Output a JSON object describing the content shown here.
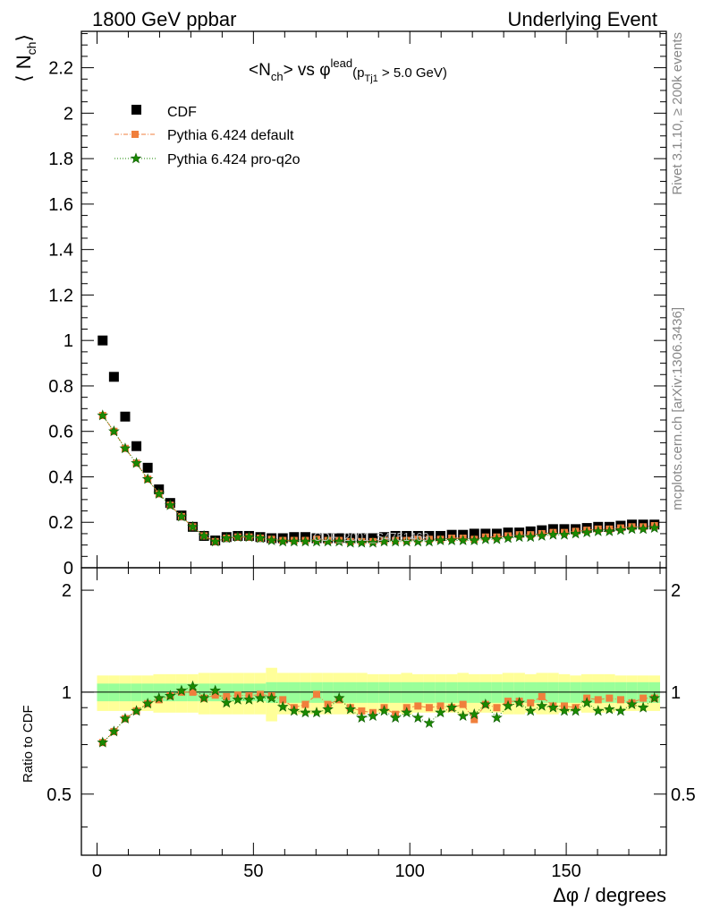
{
  "header": {
    "left": "1800 GeV ppbar",
    "right": "Underlying Event"
  },
  "title": {
    "main_prefix": "<N",
    "main_sub": "ch",
    "main_mid": "> vs φ",
    "main_sup": "lead",
    "cut_open": "(p",
    "cut_sub": "Tj1",
    "cut_rest": " > 5.0 GeV)"
  },
  "side_labels": {
    "rivet": "Rivet 3.1.10, ≥ 200k events",
    "mcplots": "mcplots.cern.ch [arXiv:1306.3436]"
  },
  "watermark": "CDF_2001_S4751469",
  "legend": [
    {
      "label": "CDF",
      "color": "#000000",
      "marker": "square"
    },
    {
      "label": "Pythia 6.424 default",
      "color": "#f07f3c",
      "marker": "square-dash"
    },
    {
      "label": "Pythia 6.424 pro-q2o",
      "color": "#1a8a00",
      "marker": "star-dot"
    }
  ],
  "y_main_label": {
    "open": "⟨ N",
    "sub": "ch",
    "close": "⟩"
  },
  "y_ratio_label": "Ratio to CDF",
  "x_label": "Δφ / degrees",
  "chart_data": {
    "type": "scatter",
    "x": [
      1.8,
      5.4,
      9,
      12.6,
      16.2,
      19.8,
      23.4,
      27,
      30.6,
      34.2,
      37.8,
      41.4,
      45,
      48.6,
      52.2,
      55.8,
      59.4,
      63,
      66.6,
      70.2,
      73.8,
      77.4,
      81,
      84.6,
      88.2,
      91.8,
      95.4,
      99,
      102.6,
      106.2,
      109.8,
      113.4,
      117,
      120.6,
      124.2,
      127.8,
      131.4,
      135,
      138.6,
      142.2,
      145.8,
      149.4,
      153,
      156.6,
      160.2,
      163.8,
      167.4,
      171,
      174.6,
      178.2
    ],
    "series": [
      {
        "name": "CDF",
        "values": [
          1.0,
          0.84,
          0.665,
          0.535,
          0.44,
          0.345,
          0.285,
          0.23,
          0.18,
          0.14,
          0.12,
          0.135,
          0.14,
          0.14,
          0.135,
          0.13,
          0.13,
          0.135,
          0.135,
          0.13,
          0.13,
          0.13,
          0.13,
          0.13,
          0.13,
          0.135,
          0.14,
          0.14,
          0.14,
          0.14,
          0.14,
          0.145,
          0.145,
          0.15,
          0.15,
          0.15,
          0.155,
          0.155,
          0.16,
          0.165,
          0.17,
          0.17,
          0.17,
          0.175,
          0.18,
          0.18,
          0.185,
          0.19,
          0.19,
          0.19
        ]
      },
      {
        "name": "Pythia 6.424 default",
        "values": [
          0.67,
          0.6,
          0.525,
          0.46,
          0.39,
          0.325,
          0.275,
          0.225,
          0.18,
          0.14,
          0.115,
          0.13,
          0.135,
          0.135,
          0.13,
          0.125,
          0.12,
          0.12,
          0.12,
          0.125,
          0.12,
          0.12,
          0.115,
          0.115,
          0.115,
          0.12,
          0.12,
          0.12,
          0.125,
          0.125,
          0.125,
          0.13,
          0.13,
          0.125,
          0.135,
          0.135,
          0.14,
          0.145,
          0.145,
          0.15,
          0.155,
          0.155,
          0.16,
          0.165,
          0.17,
          0.17,
          0.175,
          0.18,
          0.18,
          0.185
        ]
      },
      {
        "name": "Pythia 6.424 pro-q2o",
        "values": [
          0.67,
          0.6,
          0.525,
          0.46,
          0.39,
          0.325,
          0.275,
          0.225,
          0.18,
          0.14,
          0.115,
          0.13,
          0.135,
          0.135,
          0.13,
          0.12,
          0.115,
          0.115,
          0.115,
          0.115,
          0.115,
          0.115,
          0.11,
          0.11,
          0.11,
          0.115,
          0.115,
          0.115,
          0.115,
          0.115,
          0.12,
          0.12,
          0.12,
          0.12,
          0.125,
          0.125,
          0.13,
          0.135,
          0.135,
          0.14,
          0.145,
          0.145,
          0.15,
          0.155,
          0.16,
          0.16,
          0.165,
          0.17,
          0.17,
          0.175
        ]
      }
    ],
    "ratio": {
      "ylabel": "Ratio to CDF",
      "ylim": [
        0.33,
        2.33
      ],
      "ticks": [
        0.5,
        1,
        2
      ],
      "series": [
        {
          "name": "Pythia 6.424 default",
          "values": [
            0.71,
            0.765,
            0.835,
            0.88,
            0.925,
            0.95,
            0.975,
            1.0,
            1.0,
            0.96,
            0.98,
            0.97,
            0.98,
            0.975,
            0.985,
            0.975,
            0.95,
            0.9,
            0.92,
            0.985,
            0.92,
            0.95,
            0.9,
            0.88,
            0.87,
            0.9,
            0.86,
            0.9,
            0.91,
            0.9,
            0.91,
            0.9,
            0.92,
            0.83,
            0.92,
            0.9,
            0.94,
            0.94,
            0.93,
            0.97,
            0.91,
            0.91,
            0.9,
            0.96,
            0.95,
            0.96,
            0.95,
            0.93,
            0.96,
            0.96
          ]
        },
        {
          "name": "Pythia 6.424 pro-q2o",
          "values": [
            0.71,
            0.765,
            0.835,
            0.88,
            0.925,
            0.96,
            0.975,
            1.01,
            1.04,
            0.96,
            1.01,
            0.93,
            0.95,
            0.95,
            0.96,
            0.96,
            0.905,
            0.88,
            0.87,
            0.87,
            0.89,
            0.96,
            0.89,
            0.84,
            0.85,
            0.88,
            0.84,
            0.87,
            0.84,
            0.81,
            0.87,
            0.9,
            0.85,
            0.86,
            0.92,
            0.84,
            0.91,
            0.93,
            0.88,
            0.91,
            0.9,
            0.88,
            0.88,
            0.93,
            0.88,
            0.89,
            0.88,
            0.92,
            0.9,
            0.96
          ]
        }
      ],
      "inner_band_halfwidth": [
        0.06,
        0.06,
        0.06,
        0.06,
        0.06,
        0.06,
        0.06,
        0.06,
        0.06,
        0.06,
        0.06,
        0.06,
        0.06,
        0.06,
        0.06,
        0.07,
        0.07,
        0.07,
        0.07,
        0.07,
        0.07,
        0.07,
        0.07,
        0.07,
        0.07,
        0.07,
        0.07,
        0.07,
        0.07,
        0.07,
        0.07,
        0.07,
        0.07,
        0.07,
        0.07,
        0.07,
        0.07,
        0.07,
        0.07,
        0.07,
        0.07,
        0.07,
        0.07,
        0.07,
        0.07,
        0.07,
        0.07,
        0.07,
        0.07,
        0.07
      ],
      "outer_band_halfwidth": [
        0.12,
        0.12,
        0.12,
        0.12,
        0.12,
        0.13,
        0.13,
        0.13,
        0.13,
        0.14,
        0.14,
        0.14,
        0.14,
        0.14,
        0.14,
        0.18,
        0.14,
        0.14,
        0.14,
        0.14,
        0.14,
        0.14,
        0.14,
        0.14,
        0.13,
        0.13,
        0.13,
        0.14,
        0.13,
        0.13,
        0.13,
        0.13,
        0.14,
        0.13,
        0.13,
        0.13,
        0.14,
        0.14,
        0.13,
        0.14,
        0.14,
        0.13,
        0.12,
        0.13,
        0.13,
        0.13,
        0.12,
        0.12,
        0.12,
        0.12
      ]
    },
    "xlabel": "Δφ / degrees",
    "ylabel": "⟨ Nch ⟩",
    "xlim": [
      -5,
      182
    ],
    "ylim": [
      0,
      2.36
    ],
    "xticks": [
      0,
      50,
      100,
      150
    ],
    "yticks": [
      0,
      0.2,
      0.4,
      0.6,
      0.8,
      1,
      1.2,
      1.4,
      1.6,
      1.8,
      2,
      2.2
    ],
    "legend_position": "top-left",
    "grid": false
  }
}
